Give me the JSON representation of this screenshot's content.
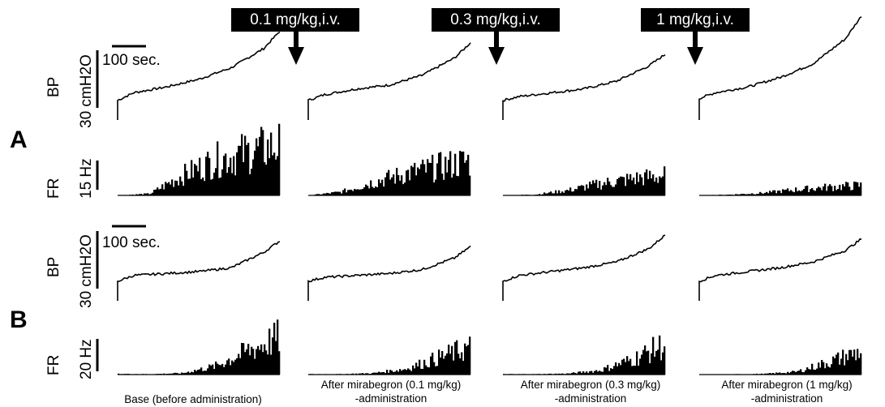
{
  "figure": {
    "row_labels": [
      "A",
      "B"
    ],
    "traces": [
      "BP",
      "FR"
    ],
    "bp_scales": [
      "30 cmH2O",
      "30 cmH2O"
    ],
    "fr_scales": [
      "15 Hz",
      "20 Hz"
    ],
    "time_scale": "100 sec.",
    "doses": [
      "0.1 mg/kg,i.v.",
      "0.3 mg/kg,i.v.",
      "1 mg/kg,i.v."
    ],
    "conditions": [
      {
        "line1": "Base (before administration)",
        "line2": ""
      },
      {
        "line1": "After mirabegron (0.1 mg/kg)",
        "line2": "-administration"
      },
      {
        "line1": "After mirabegron (0.3 mg/kg)",
        "line2": "-administration"
      },
      {
        "line1": "After mirabegron (1 mg/kg)",
        "line2": "-administration"
      }
    ]
  },
  "chart_data": [
    {
      "type": "line",
      "row": "A",
      "trace": "BP",
      "scale": "30 cmH2O",
      "series": [
        {
          "name": "Base",
          "x": [
            0,
            0.1,
            0.3,
            0.5,
            0.7,
            0.9,
            1.0
          ],
          "values": [
            6,
            10,
            13,
            17,
            23,
            33,
            42
          ]
        },
        {
          "name": "0.1 mg/kg",
          "x": [
            0,
            0.1,
            0.3,
            0.5,
            0.7,
            0.9,
            1.0
          ],
          "values": [
            6,
            9,
            12,
            14,
            19,
            28,
            36
          ]
        },
        {
          "name": "0.3 mg/kg",
          "x": [
            0,
            0.1,
            0.3,
            0.5,
            0.7,
            0.9,
            1.0
          ],
          "values": [
            6,
            8,
            10,
            12,
            16,
            24,
            30
          ]
        },
        {
          "name": "1 mg/kg",
          "x": [
            0,
            0.1,
            0.3,
            0.5,
            0.7,
            0.9,
            1.0
          ],
          "values": [
            7,
            10,
            13,
            18,
            25,
            38,
            50
          ]
        }
      ]
    },
    {
      "type": "bar",
      "row": "A",
      "trace": "FR",
      "scale": "15 Hz",
      "series": [
        {
          "name": "Base",
          "x": [
            0,
            0.2,
            0.4,
            0.6,
            0.8,
            1.0
          ],
          "values": [
            0,
            1,
            12,
            21,
            26,
            30
          ]
        },
        {
          "name": "0.1 mg/kg",
          "x": [
            0,
            0.2,
            0.4,
            0.6,
            0.8,
            1.0
          ],
          "values": [
            0,
            2,
            8,
            13,
            17,
            21
          ]
        },
        {
          "name": "0.3 mg/kg",
          "x": [
            0,
            0.2,
            0.4,
            0.6,
            0.8,
            1.0
          ],
          "values": [
            0,
            0.5,
            3,
            7,
            10,
            12
          ]
        },
        {
          "name": "1 mg/kg",
          "x": [
            0,
            0.2,
            0.4,
            0.6,
            0.8,
            1.0
          ],
          "values": [
            0,
            0.5,
            1.5,
            3.5,
            5,
            6
          ]
        }
      ]
    },
    {
      "type": "line",
      "row": "B",
      "trace": "BP",
      "scale": "30 cmH2O",
      "series": [
        {
          "name": "Base",
          "x": [
            0,
            0.1,
            0.3,
            0.5,
            0.7,
            0.9,
            1.0
          ],
          "values": [
            6,
            9,
            10,
            11,
            13,
            21,
            27
          ]
        },
        {
          "name": "0.1 mg/kg",
          "x": [
            0,
            0.1,
            0.3,
            0.5,
            0.7,
            0.9,
            1.0
          ],
          "values": [
            6,
            8,
            9,
            10,
            12,
            18,
            24
          ]
        },
        {
          "name": "0.3 mg/kg",
          "x": [
            0,
            0.1,
            0.3,
            0.5,
            0.7,
            0.9,
            1.0
          ],
          "values": [
            6,
            9,
            11,
            13,
            16,
            23,
            30
          ]
        },
        {
          "name": "1 mg/kg",
          "x": [
            0,
            0.1,
            0.3,
            0.5,
            0.7,
            0.9,
            1.0
          ],
          "values": [
            6,
            9,
            11,
            13,
            16,
            22,
            28
          ]
        }
      ]
    },
    {
      "type": "bar",
      "row": "B",
      "trace": "FR",
      "scale": "20 Hz",
      "series": [
        {
          "name": "Base",
          "x": [
            0,
            0.2,
            0.4,
            0.6,
            0.8,
            1.0
          ],
          "values": [
            0.5,
            0.3,
            1,
            6,
            17,
            27
          ]
        },
        {
          "name": "0.1 mg/kg",
          "x": [
            0,
            0.2,
            0.4,
            0.6,
            0.8,
            1.0
          ],
          "values": [
            0.3,
            0.3,
            1,
            4,
            12,
            20
          ]
        },
        {
          "name": "0.3 mg/kg",
          "x": [
            0,
            0.2,
            0.4,
            0.6,
            0.8,
            1.0
          ],
          "values": [
            0.3,
            0.3,
            0.7,
            3,
            11,
            22
          ]
        },
        {
          "name": "1 mg/kg",
          "x": [
            0,
            0.2,
            0.4,
            0.6,
            0.8,
            1.0
          ],
          "values": [
            0.2,
            0.2,
            0.5,
            2,
            9,
            17
          ]
        }
      ]
    }
  ]
}
